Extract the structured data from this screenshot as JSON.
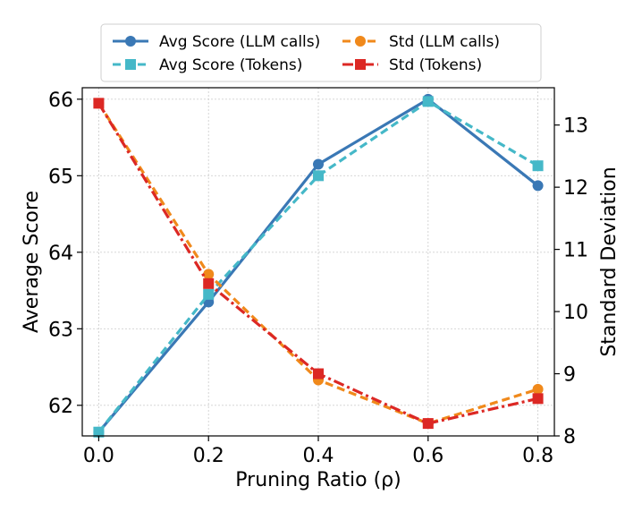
{
  "chart_data": {
    "type": "line",
    "xlabel": "Pruning Ratio (ρ)",
    "ylabel_left": "Average Score",
    "ylabel_right": "Standard Deviation",
    "x": [
      0.0,
      0.2,
      0.4,
      0.6,
      0.8
    ],
    "x_tick_labels": [
      "0.0",
      "0.2",
      "0.4",
      "0.6",
      "0.8"
    ],
    "xlim": [
      -0.03,
      0.83
    ],
    "ylim_left": [
      61.6,
      66.15
    ],
    "ylim_right": [
      8.0,
      13.6
    ],
    "y_ticks_left": [
      62,
      63,
      64,
      65,
      66
    ],
    "y_ticks_right": [
      8,
      9,
      10,
      11,
      12,
      13
    ],
    "grid": true,
    "legend_position": "top-center",
    "series": [
      {
        "name": "Avg Score (LLM calls)",
        "axis": "left",
        "color": "#3a78b5",
        "dash": "solid",
        "marker": "circle",
        "values": [
          61.65,
          63.35,
          65.15,
          66.0,
          64.87
        ]
      },
      {
        "name": "Avg Score (Tokens)",
        "axis": "left",
        "color": "#45b8c8",
        "dash": "dashed",
        "marker": "square",
        "values": [
          61.65,
          63.45,
          65.0,
          65.97,
          65.13
        ]
      },
      {
        "name": "Std (LLM calls)",
        "axis": "right",
        "color": "#f0891b",
        "dash": "dashed",
        "marker": "circle",
        "values": [
          13.35,
          10.6,
          8.9,
          8.2,
          8.75
        ]
      },
      {
        "name": "Std (Tokens)",
        "axis": "right",
        "color": "#dc2824",
        "dash": "dashdot",
        "marker": "square",
        "values": [
          13.35,
          10.45,
          9.0,
          8.2,
          8.6
        ]
      }
    ],
    "legend_order": [
      0,
      2,
      1,
      3
    ]
  }
}
